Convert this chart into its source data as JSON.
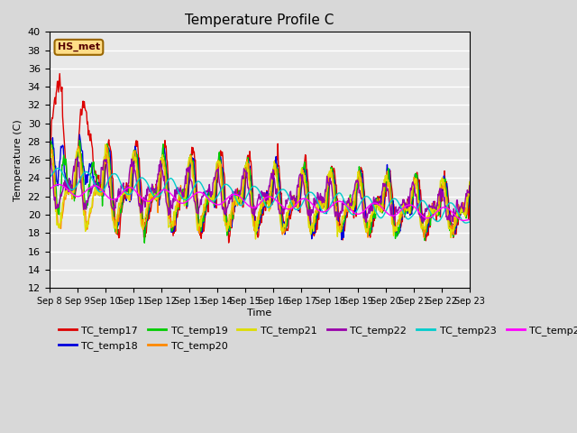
{
  "title": "Temperature Profile C",
  "xlabel": "Time",
  "ylabel": "Temperature (C)",
  "ylim": [
    12,
    40
  ],
  "yticks": [
    12,
    14,
    16,
    18,
    20,
    22,
    24,
    26,
    28,
    30,
    32,
    34,
    36,
    38,
    40
  ],
  "annotation": "HS_met",
  "series_colors": {
    "TC_temp17": "#dd0000",
    "TC_temp18": "#0000dd",
    "TC_temp19": "#00cc00",
    "TC_temp20": "#ff8800",
    "TC_temp21": "#dddd00",
    "TC_temp22": "#9900aa",
    "TC_temp23": "#00cccc",
    "TC_temp24": "#ff00ff"
  },
  "bg_color": "#e8e8e8",
  "grid_color": "#ffffff",
  "n_days": 15,
  "points_per_day": 48,
  "fig_width": 6.4,
  "fig_height": 4.8
}
